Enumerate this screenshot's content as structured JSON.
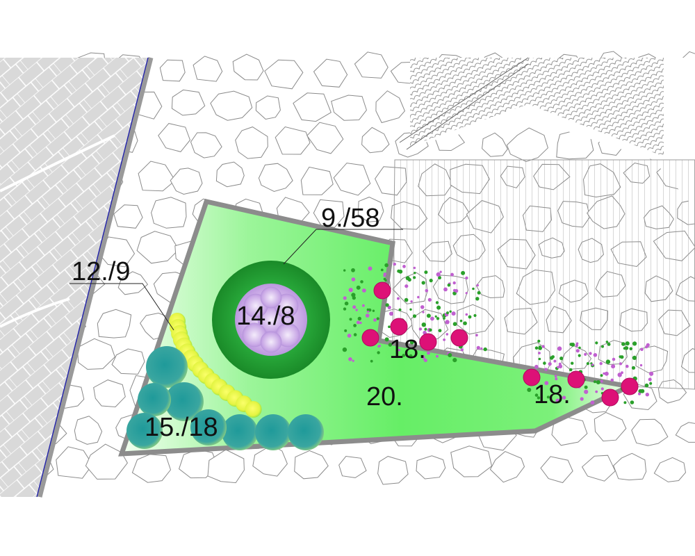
{
  "plan": {
    "labels": {
      "paving_plant": "9./58",
      "hedge_row": "12./9",
      "center_plant": "14./8",
      "shrub_group": "15./18",
      "perennials_upper": "18.",
      "perennials_lower": "18.",
      "lawn": "20."
    },
    "colors": {
      "background": "#ffffff",
      "paving_area": "#d9d9d9",
      "bed_border": "#8c8c8c",
      "lawn_light": "#f4fff0",
      "lawn_green": "#66ee66",
      "ring_green": "#1f9a2e",
      "center_lilac": "#c9a8e6",
      "hedge_yellow": "#e4f442",
      "shrub_teal": "#1f9a9a",
      "rose_magenta": "#dd1177",
      "curb_blue": "#2222aa"
    }
  }
}
